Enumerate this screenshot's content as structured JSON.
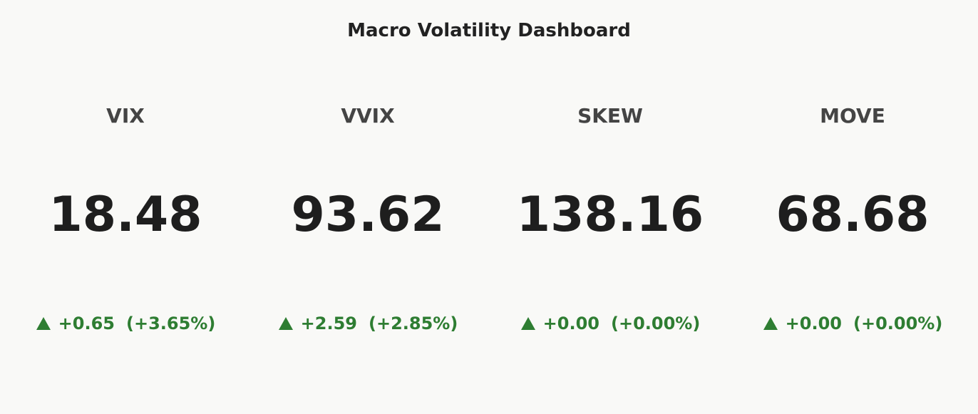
{
  "chart_data": {
    "type": "indicator",
    "title": "Macro Volatility Dashboard",
    "indicators": [
      {
        "name": "VIX",
        "value": "18.48",
        "delta": "+0.65",
        "delta_pct": "(+3.65%)"
      },
      {
        "name": "VVIX",
        "value": "93.62",
        "delta": "+2.59",
        "delta_pct": "(+2.85%)"
      },
      {
        "name": "SKEW",
        "value": "138.16",
        "delta": "+0.00",
        "delta_pct": "(+0.00%)"
      },
      {
        "name": "MOVE",
        "value": "68.68",
        "delta": "+0.00",
        "delta_pct": "(+0.00%)"
      }
    ],
    "delta_color": "#2e7d32"
  }
}
